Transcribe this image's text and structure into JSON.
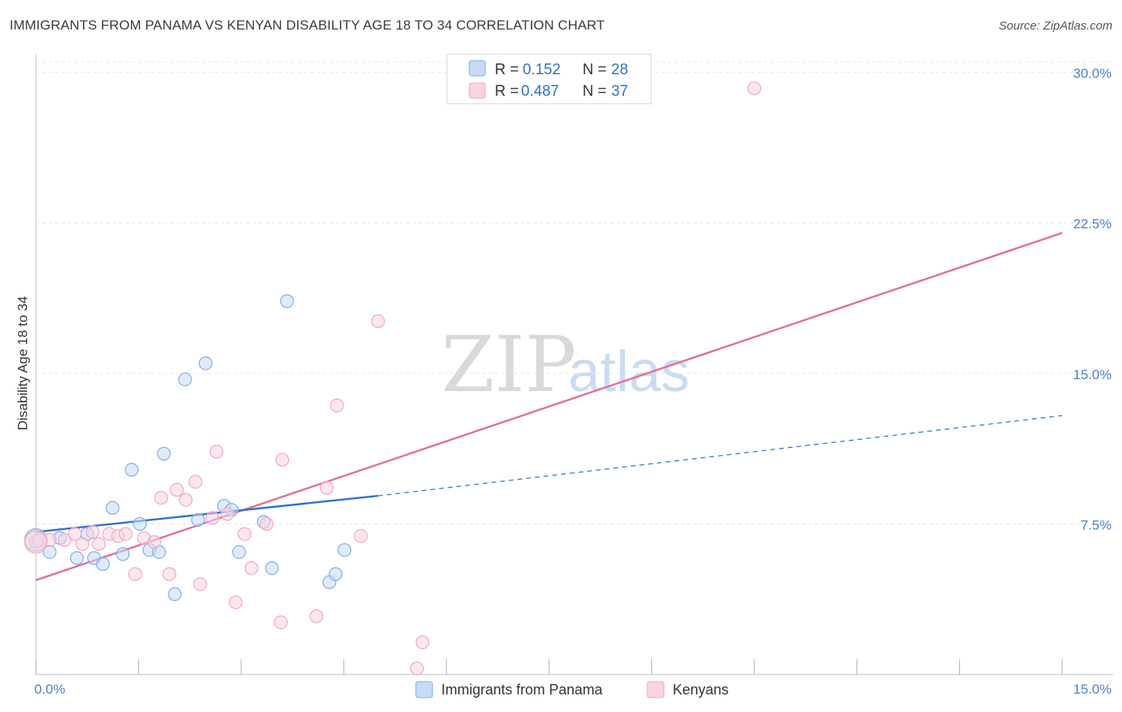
{
  "title": "IMMIGRANTS FROM PANAMA VS KENYAN DISABILITY AGE 18 TO 34 CORRELATION CHART",
  "source": "Source: ZipAtlas.com",
  "watermark": {
    "zip": "ZIP",
    "atlas": "atlas"
  },
  "chart_data": {
    "type": "scatter",
    "title": "IMMIGRANTS FROM PANAMA VS KENYAN DISABILITY AGE 18 TO 34 CORRELATION CHART",
    "xlabel": "",
    "ylabel": "Disability Age 18 to 34",
    "xlim": [
      0,
      15
    ],
    "ylim": [
      0,
      30.5
    ],
    "x_tick_labels": [
      "0.0%",
      "15.0%"
    ],
    "y_ticks": [
      7.5,
      15.0,
      22.5,
      30.0
    ],
    "y_tick_labels": [
      "7.5%",
      "15.0%",
      "22.5%",
      "30.0%"
    ],
    "grid": true,
    "legend": {
      "position": "top-center",
      "entries": [
        {
          "r_label": "R =",
          "r_value": "0.152",
          "n_label": "N =",
          "n_value": "28"
        },
        {
          "r_label": "R =",
          "r_value": "0.487",
          "n_label": "N =",
          "n_value": "37"
        }
      ]
    },
    "series": [
      {
        "name": "Immigrants from Panama",
        "color": "#7eaee8",
        "fill": "#c7dbf6",
        "line_color": "#2f6fd0",
        "trend": {
          "x0": 0,
          "y0": 7.1,
          "x1": 5.0,
          "y1": 8.9,
          "dashed_x_end": 15.0,
          "dashed_y_end": 12.9
        },
        "points": [
          [
            0.0,
            6.6
          ],
          [
            0.2,
            6.1
          ],
          [
            0.35,
            6.8
          ],
          [
            0.6,
            5.8
          ],
          [
            0.75,
            7.0
          ],
          [
            0.85,
            5.8
          ],
          [
            0.98,
            5.5
          ],
          [
            1.12,
            8.3
          ],
          [
            1.27,
            6.0
          ],
          [
            1.4,
            10.2
          ],
          [
            1.52,
            7.5
          ],
          [
            1.66,
            6.2
          ],
          [
            1.8,
            6.1
          ],
          [
            1.87,
            11.0
          ],
          [
            2.03,
            4.0
          ],
          [
            2.18,
            14.7
          ],
          [
            2.37,
            7.7
          ],
          [
            2.48,
            15.5
          ],
          [
            2.75,
            8.4
          ],
          [
            2.86,
            8.2
          ],
          [
            2.97,
            6.1
          ],
          [
            3.33,
            7.6
          ],
          [
            3.45,
            5.3
          ],
          [
            3.67,
            18.6
          ],
          [
            4.29,
            4.6
          ],
          [
            4.38,
            5.0
          ],
          [
            4.51,
            6.2
          ],
          [
            0.0,
            6.7
          ]
        ]
      },
      {
        "name": "Kenyans",
        "color": "#f0a7c0",
        "fill": "#f9d3e0",
        "line_color": "#e06f9a",
        "trend": {
          "x0": 0,
          "y0": 4.7,
          "x1": 15.0,
          "y1": 22.0
        },
        "points": [
          [
            0.05,
            6.7
          ],
          [
            0.2,
            6.7
          ],
          [
            0.42,
            6.7
          ],
          [
            0.57,
            7.0
          ],
          [
            0.68,
            6.5
          ],
          [
            0.83,
            7.1
          ],
          [
            0.92,
            6.5
          ],
          [
            1.07,
            7.0
          ],
          [
            1.2,
            6.9
          ],
          [
            1.31,
            7.0
          ],
          [
            1.45,
            5.0
          ],
          [
            1.58,
            6.8
          ],
          [
            1.73,
            6.6
          ],
          [
            1.83,
            8.8
          ],
          [
            1.95,
            5.0
          ],
          [
            2.06,
            9.2
          ],
          [
            2.19,
            8.7
          ],
          [
            2.33,
            9.6
          ],
          [
            2.4,
            4.5
          ],
          [
            2.58,
            7.8
          ],
          [
            2.64,
            11.1
          ],
          [
            2.8,
            8.0
          ],
          [
            2.92,
            3.6
          ],
          [
            3.05,
            7.0
          ],
          [
            3.15,
            5.3
          ],
          [
            3.37,
            7.5
          ],
          [
            3.58,
            2.6
          ],
          [
            3.6,
            10.7
          ],
          [
            4.1,
            2.9
          ],
          [
            4.25,
            9.3
          ],
          [
            4.4,
            13.4
          ],
          [
            4.75,
            6.9
          ],
          [
            5.0,
            17.6
          ],
          [
            5.65,
            1.6
          ],
          [
            5.57,
            0.3
          ],
          [
            10.5,
            29.2
          ],
          [
            0.0,
            6.6
          ]
        ]
      }
    ]
  }
}
